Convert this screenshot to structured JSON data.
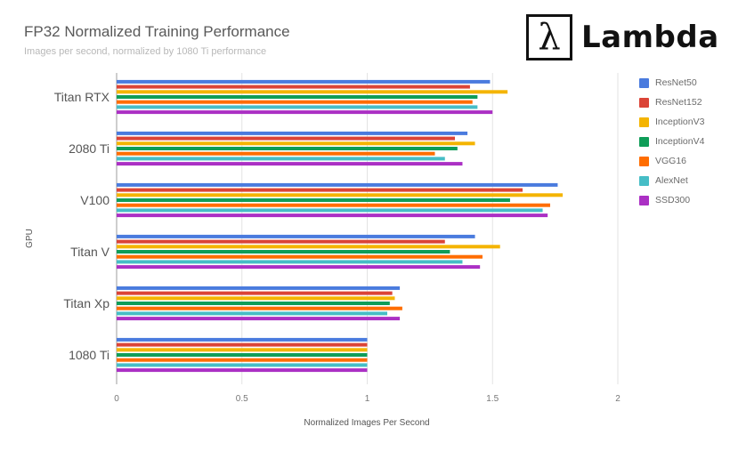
{
  "header": {
    "title": "FP32 Normalized Training Performance",
    "subtitle": "Images per second, normalized by 1080 Ti performance"
  },
  "logo": {
    "icon_name": "lambda-symbol-icon",
    "symbol": "λ",
    "text": "Lambda"
  },
  "chart_data": {
    "type": "bar",
    "orientation": "horizontal",
    "title": "FP32 Normalized Training Performance",
    "subtitle": "Images per second, normalized by 1080 Ti performance",
    "xlabel": "Normalized Images Per Second",
    "ylabel": "GPU",
    "xlim": [
      0,
      2
    ],
    "xticks": [
      "0",
      "0.5",
      "1",
      "1.5",
      "2"
    ],
    "grid": true,
    "legend_position": "right",
    "categories": [
      "Titan RTX",
      "2080 Ti",
      "V100",
      "Titan V",
      "Titan Xp",
      "1080 Ti"
    ],
    "series": [
      {
        "name": "ResNet50",
        "color": "#4a7bde",
        "values": [
          1.49,
          1.4,
          1.76,
          1.43,
          1.13,
          1.0
        ]
      },
      {
        "name": "ResNet152",
        "color": "#db4437",
        "values": [
          1.41,
          1.35,
          1.62,
          1.31,
          1.1,
          1.0
        ]
      },
      {
        "name": "InceptionV3",
        "color": "#f4b400",
        "values": [
          1.56,
          1.43,
          1.78,
          1.53,
          1.11,
          1.0
        ]
      },
      {
        "name": "InceptionV4",
        "color": "#0f9d58",
        "values": [
          1.44,
          1.36,
          1.57,
          1.33,
          1.09,
          1.0
        ]
      },
      {
        "name": "VGG16",
        "color": "#ff6d00",
        "values": [
          1.42,
          1.27,
          1.73,
          1.46,
          1.14,
          1.0
        ]
      },
      {
        "name": "AlexNet",
        "color": "#46bdc6",
        "values": [
          1.44,
          1.31,
          1.7,
          1.38,
          1.08,
          1.0
        ]
      },
      {
        "name": "SSD300",
        "color": "#ab30c4",
        "values": [
          1.5,
          1.38,
          1.72,
          1.45,
          1.13,
          1.0
        ]
      }
    ]
  }
}
